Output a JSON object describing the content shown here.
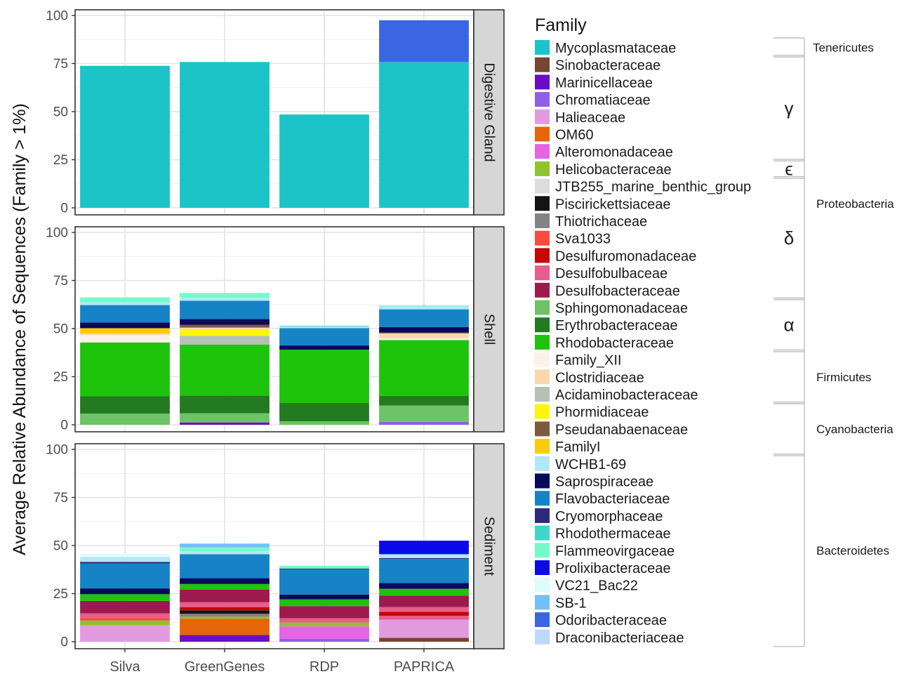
{
  "chart_data": {
    "type": "bar",
    "stacked": true,
    "ylabel": "Average Relative Abundance of Sequences (Family > 1%)",
    "xlabel": "",
    "categories": [
      "Silva",
      "GreenGenes",
      "RDP",
      "PAPRICA"
    ],
    "ylim": [
      0,
      100
    ],
    "y_ticks": [
      0,
      25,
      50,
      75,
      100
    ],
    "grid": true,
    "legend": {
      "title": "Family",
      "position": "right",
      "entries": [
        {
          "name": "Mycoplasmataceae",
          "color": "#1cc4c7"
        },
        {
          "name": "Sinobacteraceae",
          "color": "#7a4432"
        },
        {
          "name": "Marinicellaceae",
          "color": "#6a0dc4"
        },
        {
          "name": "Chromatiaceae",
          "color": "#8f5fe6"
        },
        {
          "name": "Halieaceae",
          "color": "#e39be0"
        },
        {
          "name": "OM60",
          "color": "#e6650a"
        },
        {
          "name": "Alteromonadaceae",
          "color": "#e564e6"
        },
        {
          "name": "Helicobacteraceae",
          "color": "#8ec32d"
        },
        {
          "name": "JTB255_marine_benthic_group",
          "color": "#dcdcdc"
        },
        {
          "name": "Piscirickettsiaceae",
          "color": "#141414"
        },
        {
          "name": "Thiotrichaceae",
          "color": "#838383"
        },
        {
          "name": "Sva1033",
          "color": "#fb4b3d"
        },
        {
          "name": "Desulfuromonadaceae",
          "color": "#c70606"
        },
        {
          "name": "Desulfobulbaceae",
          "color": "#e85d8c"
        },
        {
          "name": "Desulfobacteraceae",
          "color": "#9c1a4d"
        },
        {
          "name": "Sphingomonadaceae",
          "color": "#6dc366"
        },
        {
          "name": "Erythrobacteraceae",
          "color": "#237a20"
        },
        {
          "name": "Rhodobacteraceae",
          "color": "#1ec40c"
        },
        {
          "name": "Family_XII",
          "color": "#fcf1e8"
        },
        {
          "name": "Clostridiaceae",
          "color": "#fad8ae"
        },
        {
          "name": "Acidaminobacteraceae",
          "color": "#b5c1b4"
        },
        {
          "name": "Phormidiaceae",
          "color": "#fbf50a"
        },
        {
          "name": "Pseudanabaenaceae",
          "color": "#7b5a3e"
        },
        {
          "name": "FamilyI",
          "color": "#fbcb08"
        },
        {
          "name": "WCHB1-69",
          "color": "#b3e6f9"
        },
        {
          "name": "Saprospiraceae",
          "color": "#080a5c"
        },
        {
          "name": "Flavobacteriaceae",
          "color": "#1683c6"
        },
        {
          "name": "Cryomorphaceae",
          "color": "#2e2a7a"
        },
        {
          "name": "Rhodothermaceae",
          "color": "#3ed6c6"
        },
        {
          "name": "Flammeovirgaceae",
          "color": "#73fbc9"
        },
        {
          "name": "Prolixibacteraceae",
          "color": "#0a0aeb"
        },
        {
          "name": "VC21_Bac22",
          "color": "#dffbfb"
        },
        {
          "name": "SB-1",
          "color": "#70c1fa"
        },
        {
          "name": "Odoribacteraceae",
          "color": "#3a66e4"
        },
        {
          "name": "Draconibacteriaceae",
          "color": "#bcd8fa"
        }
      ]
    },
    "taxa_groups": [
      {
        "label": "Tenericutes",
        "from": "Mycoplasmataceae",
        "to": "Mycoplasmataceae"
      },
      {
        "label": "γ",
        "from": "Sinobacteraceae",
        "to": "Alteromonadaceae"
      },
      {
        "label": "ϵ",
        "from": "Helicobacteraceae",
        "to": "Helicobacteraceae"
      },
      {
        "label": "δ",
        "from": "JTB255_marine_benthic_group",
        "to": "Desulfobacteraceae"
      },
      {
        "label": "α",
        "from": "Sphingomonadaceae",
        "to": "Rhodobacteraceae"
      },
      {
        "label": "Proteobacteria",
        "from": "Sinobacteraceae",
        "to": "Rhodobacteraceae"
      },
      {
        "label": "Firmicutes",
        "from": "Family_XII",
        "to": "Acidaminobacteraceae"
      },
      {
        "label": "Cyanobacteria",
        "from": "Phormidiaceae",
        "to": "FamilyI"
      },
      {
        "label": "Bacteroidetes",
        "from": "WCHB1-69",
        "to": "Draconibacteriaceae"
      }
    ],
    "facets": [
      {
        "label": "Digestive Gland",
        "bars": [
          {
            "category": "Silva",
            "segments": [
              [
                "Mycoplasmataceae",
                73.8
              ]
            ]
          },
          {
            "category": "GreenGenes",
            "segments": [
              [
                "Mycoplasmataceae",
                75.8
              ]
            ]
          },
          {
            "category": "RDP",
            "segments": [
              [
                "Mycoplasmataceae",
                48.5
              ]
            ]
          },
          {
            "category": "PAPRICA",
            "segments": [
              [
                "Mycoplasmataceae",
                75.8
              ],
              [
                "Odoribacteraceae",
                21.7
              ]
            ]
          }
        ]
      },
      {
        "label": "Shell",
        "bars": [
          {
            "category": "Silva",
            "segments": [
              [
                "Sphingomonadaceae",
                5.8
              ],
              [
                "Erythrobacteraceae",
                9.0
              ],
              [
                "Rhodobacteraceae",
                28.0
              ],
              [
                "Family_XII",
                3.8
              ],
              [
                "Clostridiaceae",
                0.8
              ],
              [
                "FamilyI",
                2.8
              ],
              [
                "Saprospiraceae",
                3.0
              ],
              [
                "Flavobacteriaceae",
                9.0
              ],
              [
                "WCHB1-69",
                1.5
              ],
              [
                "Flammeovirgaceae",
                2.5
              ]
            ]
          },
          {
            "category": "GreenGenes",
            "segments": [
              [
                "Marinicellaceae",
                1.2
              ],
              [
                "Sphingomonadaceae",
                4.8
              ],
              [
                "Erythrobacteraceae",
                9.2
              ],
              [
                "Rhodobacteraceae",
                26.5
              ],
              [
                "Acidaminobacteraceae",
                4.5
              ],
              [
                "Phormidiaceae",
                3.5
              ],
              [
                "Clostridiaceae",
                0.8
              ],
              [
                "Pseudanabaenaceae",
                1.5
              ],
              [
                "Saprospiraceae",
                3.0
              ],
              [
                "Flavobacteriaceae",
                9.5
              ],
              [
                "WCHB1-69",
                1.5
              ],
              [
                "Flammeovirgaceae",
                2.5
              ]
            ]
          },
          {
            "category": "RDP",
            "segments": [
              [
                "Sphingomonadaceae",
                1.8
              ],
              [
                "Erythrobacteraceae",
                9.5
              ],
              [
                "Rhodobacteraceae",
                27.7
              ],
              [
                "Saprospiraceae",
                2.2
              ],
              [
                "Flavobacteriaceae",
                9.0
              ],
              [
                "WCHB1-69",
                1.0
              ],
              [
                "Rhodothermaceae",
                0.3
              ]
            ]
          },
          {
            "category": "PAPRICA",
            "segments": [
              [
                "Chromatiaceae",
                1.5
              ],
              [
                "Sphingomonadaceae",
                8.5
              ],
              [
                "Erythrobacteraceae",
                5.0
              ],
              [
                "Rhodobacteraceae",
                29.0
              ],
              [
                "Family_XII",
                1.0
              ],
              [
                "Clostridiaceae",
                2.5
              ],
              [
                "Pseudanabaenaceae",
                0.5
              ],
              [
                "Saprospiraceae",
                2.8
              ],
              [
                "Flavobacteriaceae",
                9.2
              ],
              [
                "WCHB1-69",
                1.5
              ],
              [
                "Flammeovirgaceae",
                0.5
              ]
            ]
          }
        ]
      },
      {
        "label": "Sediment",
        "bars": [
          {
            "category": "Silva",
            "segments": [
              [
                "Halieaceae",
                8.5
              ],
              [
                "Helicobacteraceae",
                2.5
              ],
              [
                "Sva1033",
                1.2
              ],
              [
                "Desulfobulbaceae",
                2.5
              ],
              [
                "Desulfobacteraceae",
                6.5
              ],
              [
                "Rhodobacteraceae",
                3.5
              ],
              [
                "Saprospiraceae",
                3.0
              ],
              [
                "Flavobacteriaceae",
                13.0
              ],
              [
                "Cryomorphaceae",
                0.8
              ],
              [
                "WCHB1-69",
                2.5
              ],
              [
                "VC21_Bac22",
                1.5
              ]
            ]
          },
          {
            "category": "GreenGenes",
            "segments": [
              [
                "Marinicellaceae",
                3.5
              ],
              [
                "OM60",
                8.5
              ],
              [
                "Helicobacteraceae",
                1.0
              ],
              [
                "Thiotrichaceae",
                1.5
              ],
              [
                "Piscirickettsiaceae",
                1.8
              ],
              [
                "Desulfuromonadaceae",
                1.7
              ],
              [
                "Desulfobulbaceae",
                2.5
              ],
              [
                "Desulfobacteraceae",
                6.5
              ],
              [
                "Rhodobacteraceae",
                3.0
              ],
              [
                "Saprospiraceae",
                3.0
              ],
              [
                "Flavobacteriaceae",
                12.5
              ],
              [
                "WCHB1-69",
                1.5
              ],
              [
                "Flammeovirgaceae",
                2.0
              ],
              [
                "SB-1",
                2.0
              ]
            ]
          },
          {
            "category": "RDP",
            "segments": [
              [
                "Chromatiaceae",
                1.5
              ],
              [
                "Alteromonadaceae",
                6.5
              ],
              [
                "Helicobacteraceae",
                2.0
              ],
              [
                "Desulfobulbaceae",
                2.2
              ],
              [
                "Desulfobacteraceae",
                6.3
              ],
              [
                "Rhodobacteraceae",
                3.5
              ],
              [
                "Saprospiraceae",
                2.5
              ],
              [
                "Flavobacteriaceae",
                13.0
              ],
              [
                "Cryomorphaceae",
                0.5
              ],
              [
                "Flammeovirgaceae",
                1.5
              ]
            ]
          },
          {
            "category": "PAPRICA",
            "segments": [
              [
                "Sinobacteraceae",
                2.0
              ],
              [
                "Halieaceae",
                9.5
              ],
              [
                "Desulfobulbaceae",
                2.0
              ],
              [
                "Desulfuromonadaceae",
                2.0
              ],
              [
                "Desulfobulbaceae",
                2.5
              ],
              [
                "Desulfobacteraceae",
                6.0
              ],
              [
                "Rhodobacteraceae",
                3.5
              ],
              [
                "Saprospiraceae",
                3.0
              ],
              [
                "Flavobacteriaceae",
                12.5
              ],
              [
                "Cryomorphaceae",
                0.5
              ],
              [
                "WCHB1-69",
                2.0
              ],
              [
                "Prolixibacteraceae",
                7.0
              ]
            ]
          }
        ]
      }
    ]
  }
}
